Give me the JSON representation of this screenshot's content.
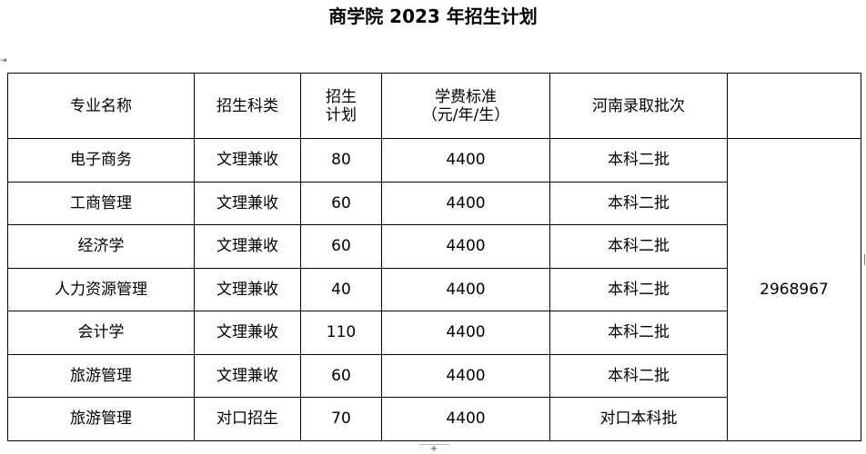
{
  "title": "商学院 2023 年招生计划",
  "handles": {
    "table_move": "⇥",
    "add_row": "+"
  },
  "table": {
    "headers": {
      "major": "专业名称",
      "category": "招生科类",
      "plan_line1": "招生",
      "plan_line2": "计划",
      "tuition_line1": "学费标准",
      "tuition_line2": "（元/年/生）",
      "batch": "河南录取批次",
      "extra": ""
    },
    "rows": [
      {
        "major": "电子商务",
        "category": "文理兼收",
        "plan": "80",
        "tuition": "4400",
        "batch": "本科二批"
      },
      {
        "major": "工商管理",
        "category": "文理兼收",
        "plan": "60",
        "tuition": "4400",
        "batch": "本科二批"
      },
      {
        "major": "经济学",
        "category": "文理兼收",
        "plan": "60",
        "tuition": "4400",
        "batch": "本科二批"
      },
      {
        "major": "人力资源管理",
        "category": "文理兼收",
        "plan": "40",
        "tuition": "4400",
        "batch": "本科二批"
      },
      {
        "major": "会计学",
        "category": "文理兼收",
        "plan": "110",
        "tuition": "4400",
        "batch": "本科二批"
      },
      {
        "major": "旅游管理",
        "category": "文理兼收",
        "plan": "60",
        "tuition": "4400",
        "batch": "本科二批"
      },
      {
        "major": "旅游管理",
        "category": "对口招生",
        "plan": "70",
        "tuition": "4400",
        "batch": "对口本科批"
      }
    ],
    "merged_value": "2968967"
  }
}
